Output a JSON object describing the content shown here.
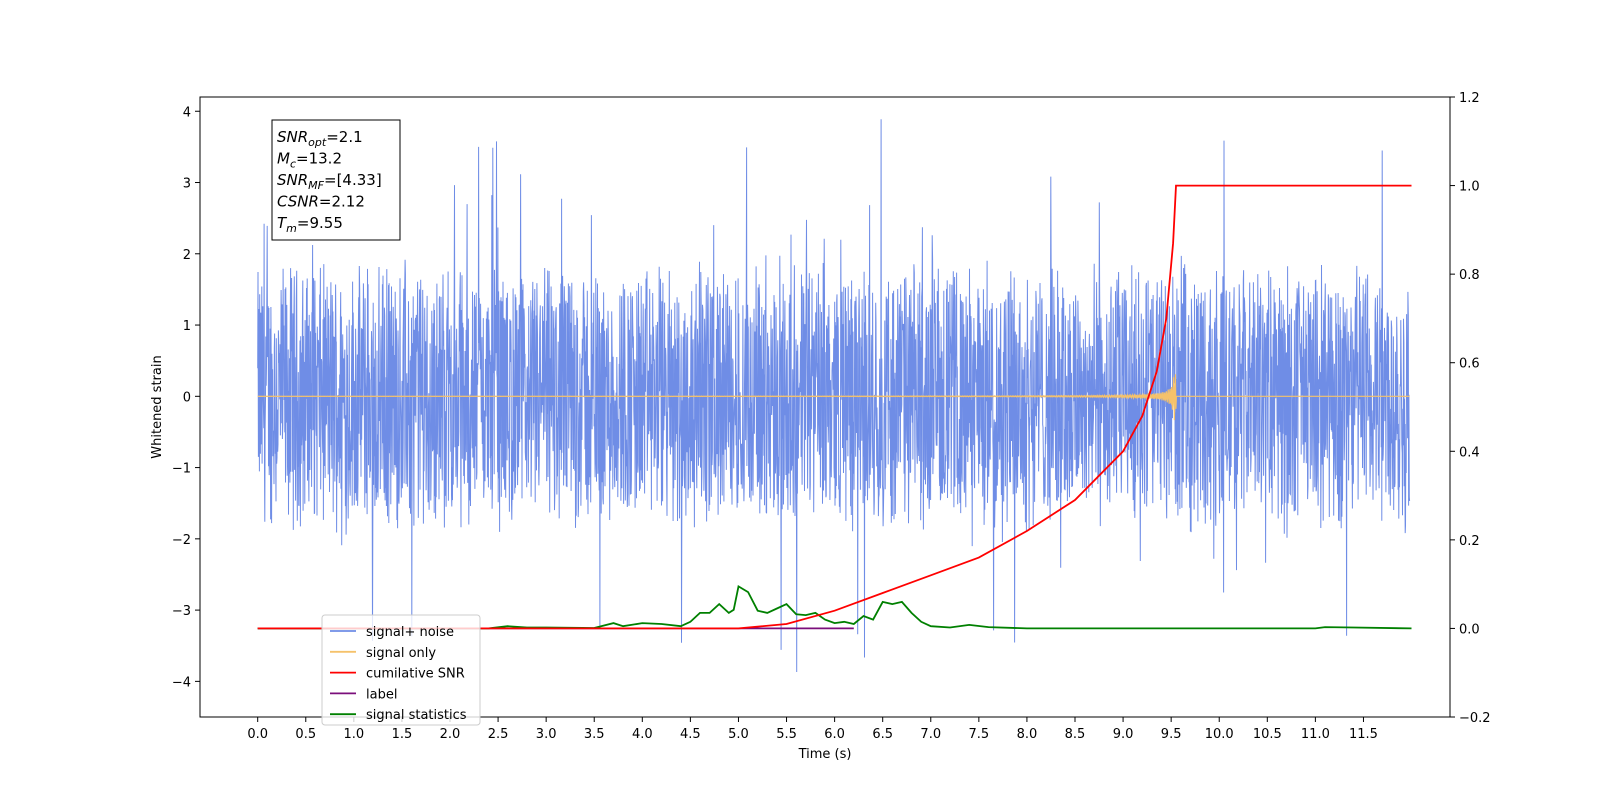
{
  "chart_data": {
    "type": "line",
    "xlabel": "Time (s)",
    "ylabel": "Whitened strain",
    "xlim": [
      -0.6,
      12.4
    ],
    "ylim": [
      -4.5,
      4.2
    ],
    "y2lim": [
      -0.2,
      1.2
    ],
    "x_ticks": [
      0.0,
      0.5,
      1.0,
      1.5,
      2.0,
      2.5,
      3.0,
      3.5,
      4.0,
      4.5,
      5.0,
      5.5,
      6.0,
      6.5,
      7.0,
      7.5,
      8.0,
      8.5,
      9.0,
      9.5,
      10.0,
      10.5,
      11.0,
      11.5
    ],
    "x_tick_labels": [
      "0.0",
      "0.5",
      "1.0",
      "1.5",
      "2.0",
      "2.5",
      "3.0",
      "3.5",
      "4.0",
      "4.5",
      "5.0",
      "5.5",
      "6.0",
      "6.5",
      "7.0",
      "7.5",
      "8.0",
      "8.5",
      "9.0",
      "9.5",
      "10.0",
      "10.5",
      "11.0",
      "11.5"
    ],
    "y_ticks": [
      -4,
      -3,
      -2,
      -1,
      0,
      1,
      2,
      3,
      4
    ],
    "y_tick_labels": [
      "−4",
      "−3",
      "−2",
      "−1",
      "0",
      "1",
      "2",
      "3",
      "4"
    ],
    "y2_ticks": [
      -0.2,
      0.0,
      0.2,
      0.4,
      0.6,
      0.8,
      1.0,
      1.2
    ],
    "y2_tick_labels": [
      "−0.2",
      "0.0",
      "0.2",
      "0.4",
      "0.6",
      "0.8",
      "1.0",
      "1.2"
    ],
    "annotation": {
      "lines": [
        {
          "var": "SNR",
          "sub": "opt",
          "value": "=2.1"
        },
        {
          "var": "M",
          "sub": "c",
          "value": "=13.2"
        },
        {
          "var": "SNR",
          "sub": "MF",
          "value": "=[4.33]"
        },
        {
          "var": "CSNR",
          "sub": "",
          "value": "=2.12"
        },
        {
          "var": "T",
          "sub": "m",
          "value": "=9.55"
        }
      ]
    },
    "series": [
      {
        "name": "signal+ noise",
        "color": "#6f8de6",
        "axis": "left",
        "description": "noise band roughly ±1.7 with spikes up to 3.8 and down to −4.1 over t=0–12"
      },
      {
        "name": "signal only",
        "color": "#f5c26b",
        "axis": "left",
        "chirp_end": 9.55,
        "peak_amplitude": 0.35
      },
      {
        "name": "cumilative SNR",
        "color": "#ff0000",
        "axis": "right",
        "points": [
          [
            0.0,
            0.0
          ],
          [
            5.0,
            0.0
          ],
          [
            5.5,
            0.01
          ],
          [
            6.0,
            0.04
          ],
          [
            6.5,
            0.08
          ],
          [
            7.0,
            0.12
          ],
          [
            7.5,
            0.16
          ],
          [
            8.0,
            0.22
          ],
          [
            8.5,
            0.29
          ],
          [
            9.0,
            0.4
          ],
          [
            9.2,
            0.48
          ],
          [
            9.35,
            0.58
          ],
          [
            9.45,
            0.7
          ],
          [
            9.52,
            0.87
          ],
          [
            9.55,
            1.0
          ],
          [
            12.0,
            1.0
          ]
        ]
      },
      {
        "name": "label",
        "color": "#7b0f7b",
        "axis": "right",
        "points": [
          [
            0.0,
            0.0
          ],
          [
            6.2,
            0.0
          ]
        ]
      },
      {
        "name": "signal statistics",
        "color": "#008000",
        "axis": "right",
        "points": [
          [
            0.0,
            0.0
          ],
          [
            2.4,
            0.0
          ],
          [
            2.6,
            0.005
          ],
          [
            2.8,
            0.002
          ],
          [
            3.0,
            0.002
          ],
          [
            3.5,
            0.001
          ],
          [
            3.7,
            0.012
          ],
          [
            3.8,
            0.005
          ],
          [
            4.0,
            0.012
          ],
          [
            4.2,
            0.01
          ],
          [
            4.4,
            0.005
          ],
          [
            4.5,
            0.015
          ],
          [
            4.6,
            0.035
          ],
          [
            4.7,
            0.035
          ],
          [
            4.8,
            0.055
          ],
          [
            4.9,
            0.035
          ],
          [
            4.95,
            0.042
          ],
          [
            5.0,
            0.095
          ],
          [
            5.1,
            0.082
          ],
          [
            5.2,
            0.04
          ],
          [
            5.3,
            0.035
          ],
          [
            5.4,
            0.045
          ],
          [
            5.5,
            0.055
          ],
          [
            5.6,
            0.032
          ],
          [
            5.7,
            0.03
          ],
          [
            5.8,
            0.035
          ],
          [
            5.9,
            0.02
          ],
          [
            6.0,
            0.012
          ],
          [
            6.1,
            0.015
          ],
          [
            6.2,
            0.01
          ],
          [
            6.3,
            0.028
          ],
          [
            6.4,
            0.02
          ],
          [
            6.5,
            0.06
          ],
          [
            6.6,
            0.055
          ],
          [
            6.7,
            0.06
          ],
          [
            6.8,
            0.035
          ],
          [
            6.9,
            0.015
          ],
          [
            7.0,
            0.005
          ],
          [
            7.2,
            0.002
          ],
          [
            7.4,
            0.008
          ],
          [
            7.6,
            0.003
          ],
          [
            8.0,
            0.0
          ],
          [
            11.0,
            0.0
          ],
          [
            11.1,
            0.003
          ],
          [
            11.4,
            0.002
          ],
          [
            12.0,
            0.0
          ]
        ]
      }
    ],
    "legend": {
      "position": "lower-left",
      "entries": [
        {
          "label": "signal+ noise",
          "color": "#6f8de6"
        },
        {
          "label": "signal only",
          "color": "#f5c26b"
        },
        {
          "label": "cumilative SNR",
          "color": "#ff0000"
        },
        {
          "label": "label",
          "color": "#7b0f7b"
        },
        {
          "label": "signal statistics",
          "color": "#008000"
        }
      ]
    }
  }
}
